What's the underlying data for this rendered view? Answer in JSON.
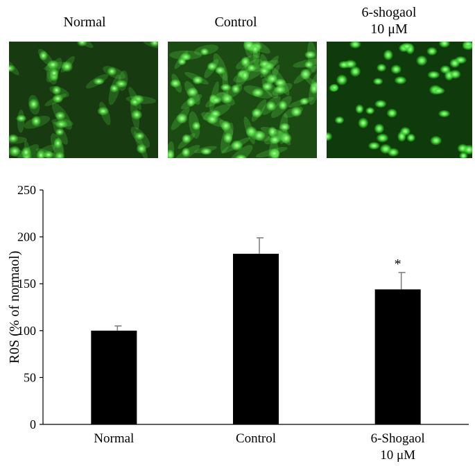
{
  "panels": [
    {
      "label": "Normal",
      "bg": "#173a10",
      "cell": "#4ccf3a"
    },
    {
      "label": "Control",
      "bg": "#1b4a12",
      "cell": "#5be04a"
    },
    {
      "label_line1": "6-shogaol",
      "label_line2": "10 μM",
      "bg": "#0f3a0c",
      "cell": "#46e23a"
    }
  ],
  "chart_data": {
    "type": "bar",
    "categories": [
      "Normal",
      "Control",
      "6-Shogaol"
    ],
    "category_sublabels": [
      "",
      "",
      "10 μM"
    ],
    "values": [
      100,
      182,
      144
    ],
    "errors": [
      5,
      17,
      18
    ],
    "significance": [
      "",
      "",
      "*"
    ],
    "ylabel": "R0S (% of normaol)",
    "ylim": [
      0,
      250
    ],
    "yticks": [
      0,
      50,
      100,
      150,
      200,
      250
    ],
    "bar_color": "#000000",
    "error_color": "#808080",
    "grid": false,
    "legend": "none"
  }
}
